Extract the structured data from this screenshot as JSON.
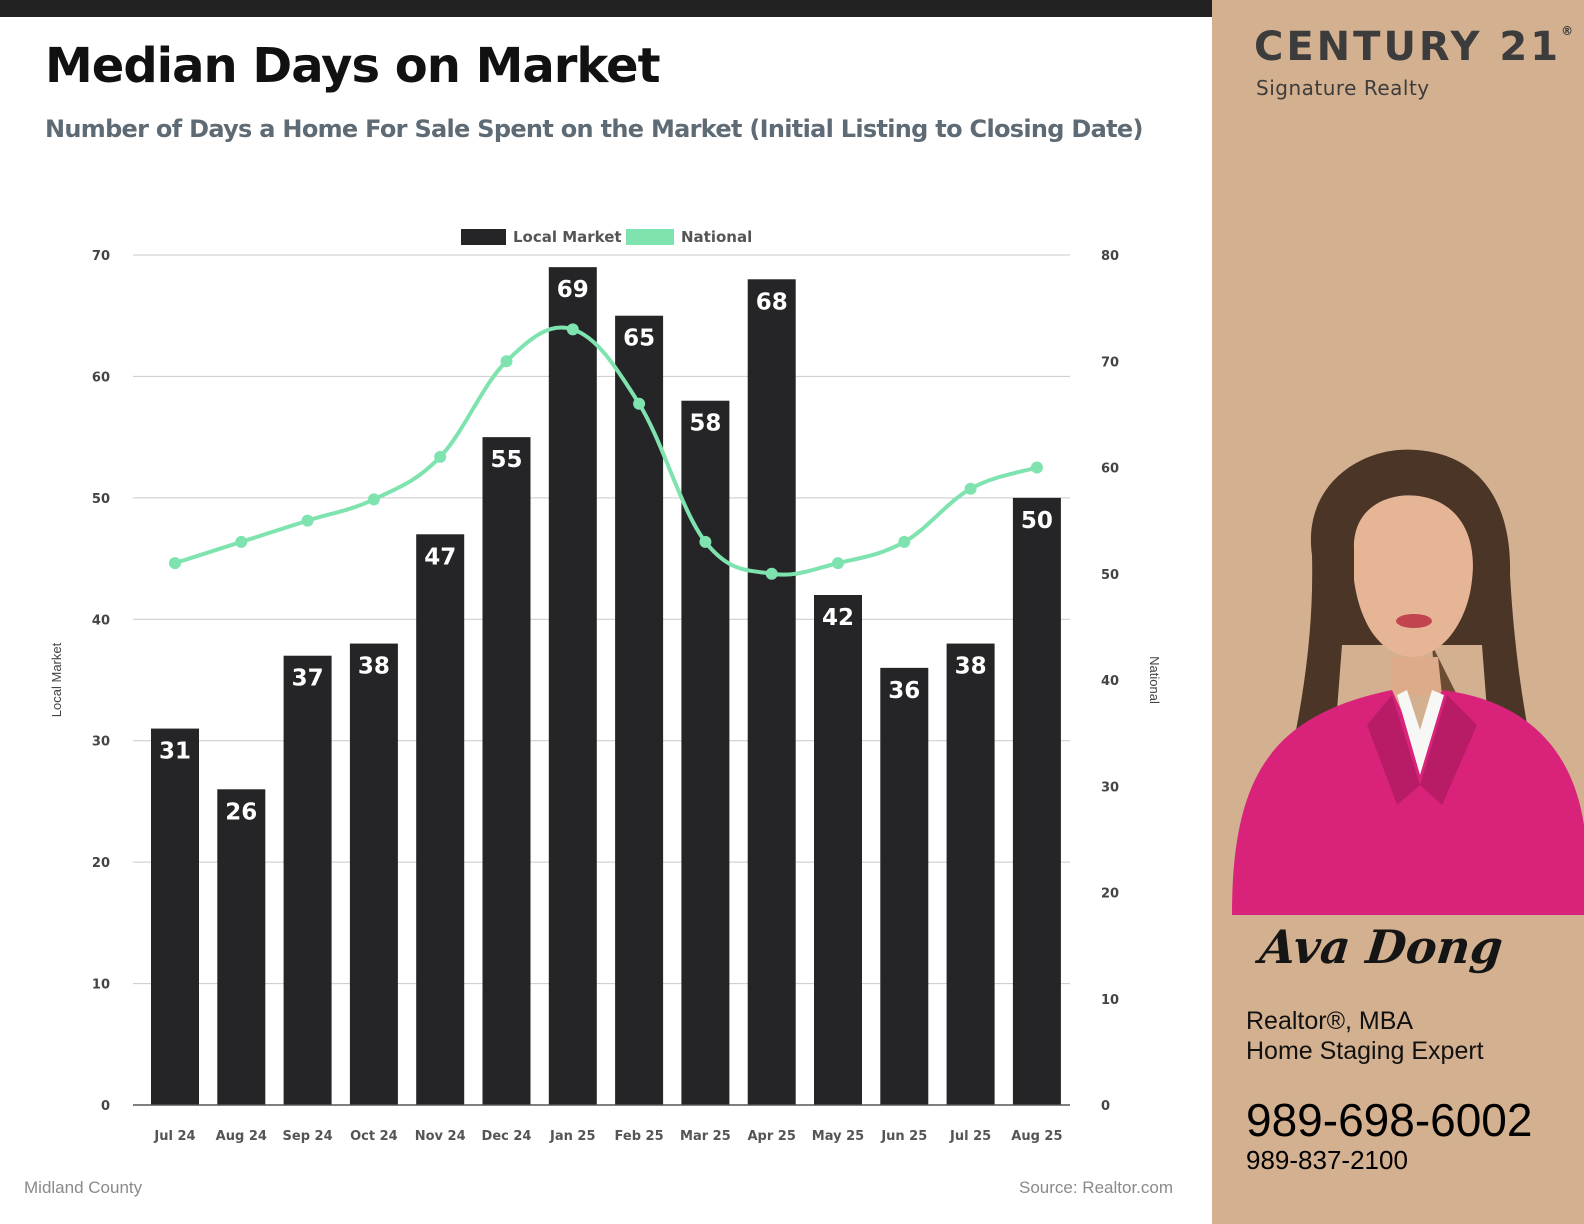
{
  "page": {
    "title": "Median Days on Market",
    "subtitle": "Number of Days a Home For Sale Spent on the Market (Initial Listing to Closing Date)",
    "footer_left": "Midland County",
    "footer_right": "Source: Realtor.com"
  },
  "brand": {
    "name": "CENTURY 21",
    "trademark": "®",
    "sub": "Signature Realty"
  },
  "agent": {
    "name": "Ava Dong",
    "role_line1": "Realtor®, MBA",
    "role_line2": "Home Staging Expert",
    "phone_primary": "989-698-6002",
    "phone_secondary": "989-837-2100"
  },
  "colors": {
    "bar": "#252527",
    "line": "#7ee3ae",
    "sidebar": "#d3b08f",
    "jacket": "#d9237b"
  },
  "chart_data": {
    "type": "bar",
    "categories": [
      "Jul 24",
      "Aug 24",
      "Sep 24",
      "Oct 24",
      "Nov 24",
      "Dec 24",
      "Jan 25",
      "Feb 25",
      "Mar 25",
      "Apr 25",
      "May 25",
      "Jun 25",
      "Jul 25",
      "Aug 25"
    ],
    "series": [
      {
        "name": "Local Market",
        "type": "bar",
        "axis": "left",
        "values": [
          31,
          26,
          37,
          38,
          47,
          55,
          69,
          65,
          58,
          68,
          42,
          36,
          38,
          50
        ]
      },
      {
        "name": "National",
        "type": "line",
        "axis": "right",
        "values": [
          51,
          53,
          55,
          57,
          61,
          70,
          73,
          66,
          53,
          50,
          51,
          53,
          58,
          60
        ]
      }
    ],
    "ylabel": "Local Market",
    "y2label": "National",
    "ylim": [
      0,
      70
    ],
    "y2lim": [
      0,
      80
    ],
    "yticks": [
      0,
      10,
      20,
      30,
      40,
      50,
      60,
      70
    ],
    "y2ticks": [
      0,
      10,
      20,
      30,
      40,
      50,
      60,
      70,
      80
    ],
    "grid": true,
    "legend": "top-center"
  }
}
